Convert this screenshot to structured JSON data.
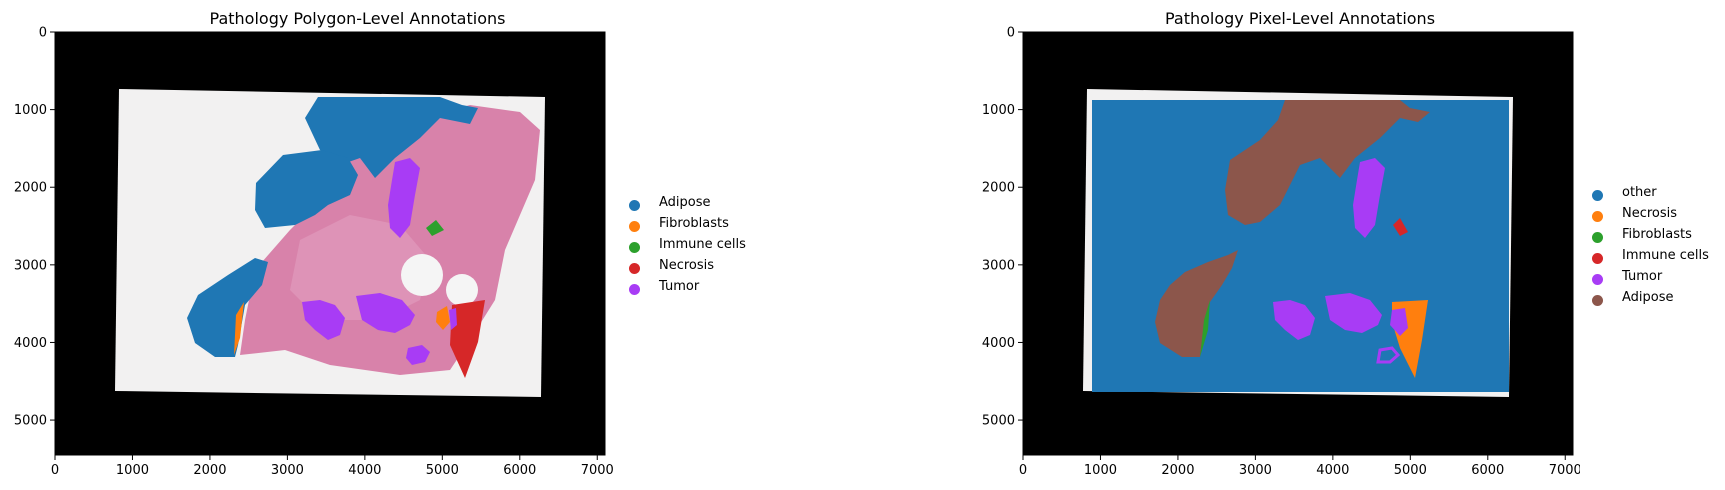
{
  "figure": {
    "left_panel": {
      "title": "Pathology Polygon-Level Annotations",
      "legend": [
        {
          "label": "Adipose",
          "color": "#1f77b4"
        },
        {
          "label": "Fibroblasts",
          "color": "#ff7f0e"
        },
        {
          "label": "Immune cells",
          "color": "#2ca02c"
        },
        {
          "label": "Necrosis",
          "color": "#d62728"
        },
        {
          "label": "Tumor",
          "color": "#a83cf5"
        }
      ]
    },
    "right_panel": {
      "title": "Pathology Pixel-Level Annotations",
      "legend": [
        {
          "label": "other",
          "color": "#1f77b4"
        },
        {
          "label": "Necrosis",
          "color": "#ff7f0e"
        },
        {
          "label": "Fibroblasts",
          "color": "#2ca02c"
        },
        {
          "label": "Immune cells",
          "color": "#d62728"
        },
        {
          "label": "Tumor",
          "color": "#a83cf5"
        },
        {
          "label": "Adipose",
          "color": "#8c564b"
        }
      ]
    },
    "axes": {
      "x_ticks": [
        "0",
        "1000",
        "2000",
        "3000",
        "4000",
        "5000",
        "6000",
        "7000"
      ],
      "y_ticks": [
        "0",
        "1000",
        "2000",
        "3000",
        "4000",
        "5000"
      ],
      "x_range": [
        0,
        7100
      ],
      "y_range": [
        0,
        5450
      ]
    }
  }
}
